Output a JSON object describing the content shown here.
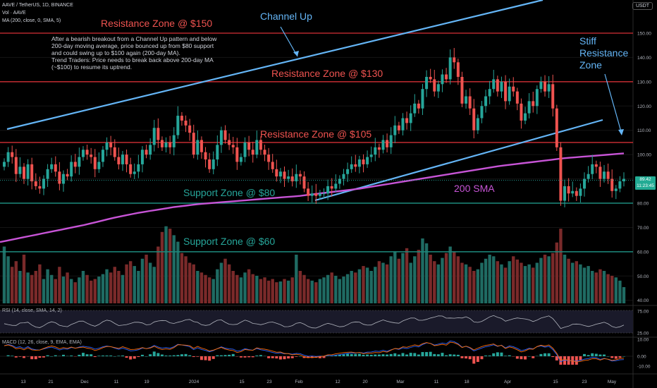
{
  "header": {
    "title": "AAVE / TetherUS, 1D, BINANCE",
    "volume_label": "Vol · AAVE",
    "ma_label": "MA (200, close, 0, SMA, 5)",
    "currency": "USDT"
  },
  "annotation": {
    "lines": [
      "After a bearish breakout from a Channel Up pattern and below",
      "200-day moving average, price bounced up from $80 support",
      "and could swing up to $100 again (200-day MA).",
      "Trend Traders: Price needs to break back above 200-day MA",
      "(~$100) to resume its uptrend."
    ]
  },
  "labels": {
    "channel_up": "Channel Up",
    "stiff_line1": "Stiff",
    "stiff_line2": "Resistance",
    "stiff_line3": "Zone",
    "sma_label": "200 SMA"
  },
  "zones": [
    {
      "label": "Resistance Zone @ $150",
      "price": 150,
      "kind": "resistance"
    },
    {
      "label": "Resistance Zone @ $130",
      "price": 130,
      "kind": "resistance"
    },
    {
      "label": "Resistance Zone @ $105",
      "price": 105,
      "kind": "resistance"
    },
    {
      "label": "Support Zone @ $80",
      "price": 80,
      "kind": "support"
    },
    {
      "label": "Support Zone @ $60",
      "price": 60,
      "kind": "support"
    }
  ],
  "price_badge": {
    "price": "89.42",
    "countdown": "11:23:45"
  },
  "rsi": {
    "label": "RSI (14, close, SMA, 14, 2)",
    "ticks": [
      "75.00",
      "25.00"
    ]
  },
  "macd": {
    "label": "MACD (12, 26, close, 9, EMA, EMA)",
    "ticks": [
      "10.00",
      "0.00",
      "-10.00"
    ]
  },
  "colors": {
    "up": "#26a69a",
    "down": "#ef5350",
    "resistance": "#e53935",
    "support": "#26a69a",
    "channel": "#64b5f6",
    "sma": "#c754d6"
  },
  "chart_data": {
    "type": "candlestick",
    "symbol": "AAVE / TetherUS",
    "timeframe": "1D",
    "y_axis": {
      "ylim": [
        48,
        160
      ],
      "ticks": [
        40,
        50,
        60,
        70,
        80,
        90,
        100,
        110,
        120,
        130,
        140,
        150
      ]
    },
    "x_ticks": [
      "13",
      "21",
      "Dec",
      "11",
      "19",
      "2024",
      "15",
      "23",
      "Feb",
      "12",
      "20",
      "Mar",
      "11",
      "18",
      "Apr",
      "15",
      "23",
      "May"
    ],
    "closes": [
      97,
      101,
      99,
      92,
      95,
      90,
      96,
      89,
      87,
      86,
      90,
      94,
      96,
      93,
      88,
      92,
      91,
      97,
      95,
      99,
      102,
      100,
      99,
      94,
      97,
      102,
      105,
      103,
      99,
      96,
      100,
      96,
      92,
      93,
      96,
      102,
      100,
      104,
      111,
      106,
      103,
      105,
      103,
      108,
      116,
      114,
      112,
      109,
      100,
      106,
      101,
      98,
      94,
      98,
      104,
      110,
      106,
      104,
      103,
      97,
      99,
      105,
      102,
      100,
      106,
      102,
      100,
      97,
      94,
      91,
      93,
      90,
      91,
      89,
      92,
      91,
      86,
      83,
      84,
      83,
      84,
      84,
      87,
      86,
      88,
      90,
      92,
      94,
      96,
      95,
      98,
      96,
      99,
      100,
      103,
      102,
      106,
      103,
      108,
      112,
      110,
      115,
      113,
      117,
      121,
      119,
      127,
      132,
      131,
      126,
      129,
      133,
      131,
      140,
      138,
      132,
      121,
      124,
      119,
      110,
      115,
      120,
      124,
      127,
      131,
      126,
      130,
      122,
      128,
      126,
      121,
      114,
      117,
      122,
      120,
      127,
      130,
      126,
      129,
      119,
      103,
      81,
      87,
      84,
      85,
      83,
      86,
      90,
      92,
      96,
      95,
      90,
      93,
      90,
      85,
      86,
      89,
      90
    ],
    "sma200": [
      64,
      64.5,
      65,
      65.5,
      66,
      66.5,
      67,
      67.5,
      68,
      68.5,
      69,
      69.5,
      70,
      70.5,
      71,
      71.6,
      72.2,
      72.8,
      73.4,
      74,
      74.5,
      75,
      75.5,
      76,
      76.4,
      76.8,
      77.2,
      77.6,
      78,
      78.4,
      78.7,
      79,
      79.3,
      79.6,
      79.8,
      80,
      80.2,
      80.4,
      80.6,
      80.8,
      81,
      81.2,
      81.4,
      81.6,
      81.8,
      82,
      82.2,
      82.4,
      82.6,
      82.8,
      83,
      83.3,
      83.6,
      83.9,
      84.2,
      84.5,
      84.8,
      85.1,
      85.4,
      85.7,
      86,
      86.4,
      86.8,
      87.2,
      87.6,
      88,
      88.4,
      88.8,
      89.2,
      89.6,
      90,
      90.4,
      90.8,
      91.2,
      91.6,
      92,
      92.4,
      92.8,
      93.2,
      93.6,
      94,
      94.4,
      94.8,
      95.2,
      95.5,
      95.8,
      96.1,
      96.4,
      96.7,
      97,
      97.3,
      97.6,
      97.9,
      98.2,
      98.5,
      98.7,
      98.9,
      99.1,
      99.3,
      99.5,
      99.7,
      99.9,
      100.1,
      100.3,
      100.5
    ],
    "volume": [
      70,
      58,
      45,
      52,
      40,
      60,
      38,
      35,
      40,
      48,
      30,
      42,
      35,
      30,
      45,
      33,
      38,
      30,
      26,
      32,
      40,
      35,
      28,
      30,
      33,
      36,
      42,
      38,
      45,
      40,
      35,
      48,
      52,
      46,
      40,
      55,
      60,
      50,
      45,
      70,
      88,
      95,
      92,
      84,
      76,
      62,
      58,
      50,
      48,
      40,
      38,
      35,
      32,
      30,
      42,
      50,
      55,
      48,
      40,
      35,
      32,
      38,
      42,
      36,
      34,
      30,
      32,
      28,
      30,
      26,
      27,
      30,
      28,
      32,
      60,
      40,
      35,
      30,
      28,
      26,
      30,
      32,
      35,
      38,
      34,
      30,
      33,
      36,
      40,
      38,
      42,
      46,
      44,
      40,
      45,
      52,
      50,
      48,
      58,
      64,
      55,
      62,
      68,
      50,
      58,
      66,
      80,
      74,
      60,
      52,
      48,
      56,
      62,
      70,
      64,
      58,
      50,
      48,
      45,
      40,
      42,
      50,
      55,
      60,
      58,
      52,
      48,
      44,
      52,
      58,
      54,
      50,
      46,
      48,
      44,
      50,
      56,
      60,
      58,
      62,
      75,
      92,
      60,
      55,
      50,
      52,
      48,
      44,
      46,
      40,
      38,
      42,
      40,
      36,
      34,
      32,
      28,
      20
    ],
    "zones": [
      150,
      130,
      105,
      80,
      60
    ],
    "last_price": 89.42
  }
}
